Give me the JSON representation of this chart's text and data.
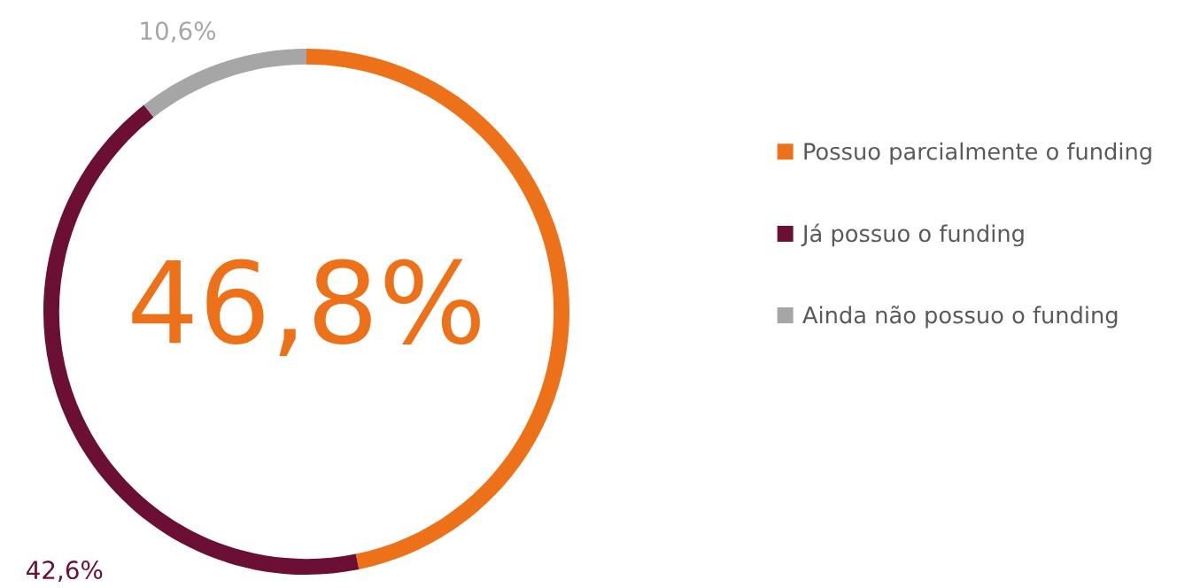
{
  "chart_data": {
    "type": "donut",
    "categories": [
      "Possuo parcialmente o funding",
      "Já possuo o funding",
      "Ainda não possuo o funding"
    ],
    "values": [
      46.8,
      42.6,
      10.6
    ],
    "colors": [
      "#ec7118",
      "#6b0f35",
      "#a6a6a6"
    ],
    "value_labels": [
      null,
      "42,6%",
      "10,6%"
    ],
    "annotations": [
      "46,8%"
    ],
    "legend": "right"
  }
}
